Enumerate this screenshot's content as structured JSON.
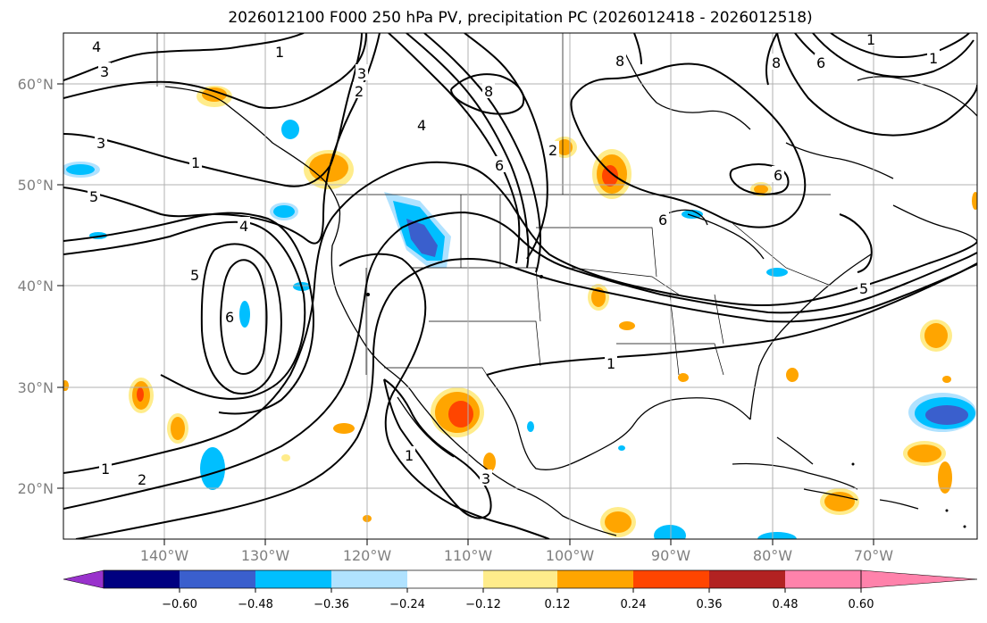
{
  "title": "2026012100 F000 250 hPa PV, precipitation PC (2026012418 - 2026012518)",
  "lat_labels": [
    "60°N",
    "50°N",
    "40°N",
    "30°N",
    "20°N"
  ],
  "lon_labels": [
    "140°W",
    "130°W",
    "120°W",
    "110°W",
    "100°W",
    "90°W",
    "80°W",
    "70°W"
  ],
  "colorbar": {
    "ticks": [
      "−0.60",
      "−0.48",
      "−0.36",
      "−0.24",
      "−0.12",
      "0.12",
      "0.24",
      "0.36",
      "0.48",
      "0.60"
    ],
    "colors": [
      "#9932cc",
      "#000080",
      "#3a5fcd",
      "#00bfff",
      "#b0e2ff",
      "#ffffff",
      "#ffec8b",
      "#ffa500",
      "#ff4500",
      "#b22222",
      "#ff82ab"
    ]
  },
  "contour_labels": [
    "4",
    "3",
    "1",
    "3",
    "1",
    "5",
    "4",
    "5",
    "6",
    "1",
    "2",
    "3",
    "2",
    "4",
    "6",
    "8",
    "1",
    "1",
    "3",
    "8",
    "6",
    "5",
    "8",
    "6",
    "6",
    "1",
    "1",
    "2"
  ],
  "colors": {
    "gridline": "#b0b0b0",
    "contour": "#000000",
    "coastline": "#000000"
  }
}
